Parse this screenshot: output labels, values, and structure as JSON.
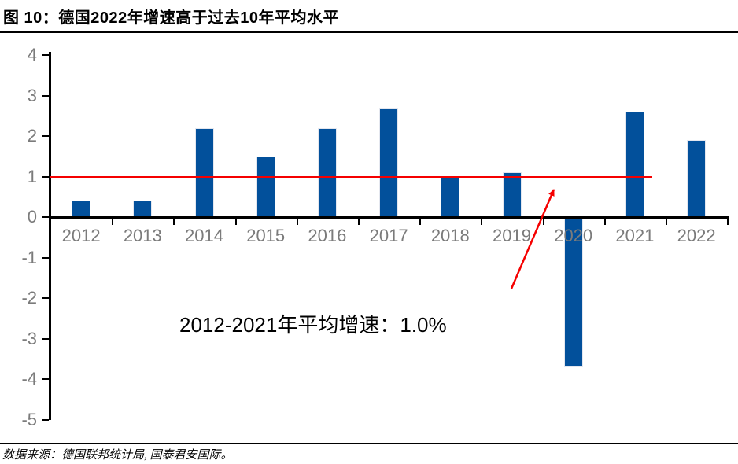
{
  "page": {
    "title": "图 10：德国2022年增速高于过去10年平均水平",
    "source": "数据来源：德国联邦统计局, 国泰君安国际。"
  },
  "chart_data": {
    "type": "bar",
    "title": "图 10：德国2022年增速高于过去10年平均水平",
    "categories": [
      "2012",
      "2013",
      "2014",
      "2015",
      "2016",
      "2017",
      "2018",
      "2019",
      "2020",
      "2021",
      "2022"
    ],
    "values": [
      0.4,
      0.4,
      2.2,
      1.5,
      2.2,
      2.7,
      1.0,
      1.1,
      -3.7,
      2.6,
      1.9
    ],
    "xlabel": "",
    "ylabel": "",
    "ylim": [
      -5,
      4
    ],
    "yticks": [
      4,
      3,
      2,
      1,
      0,
      -1,
      -2,
      -3,
      -4,
      -5
    ],
    "grid": false,
    "legend": "none",
    "bar_color": "#02509B",
    "axis_color": "#000000",
    "tick_label_color": "#7b7b7b",
    "reference_line": {
      "value": 1.0,
      "color": "#F50000",
      "description": "2012-2021 average growth line"
    },
    "annotation": {
      "text": "2012-2021年平均增速：1.0%",
      "arrow_color": "#F50000"
    }
  }
}
